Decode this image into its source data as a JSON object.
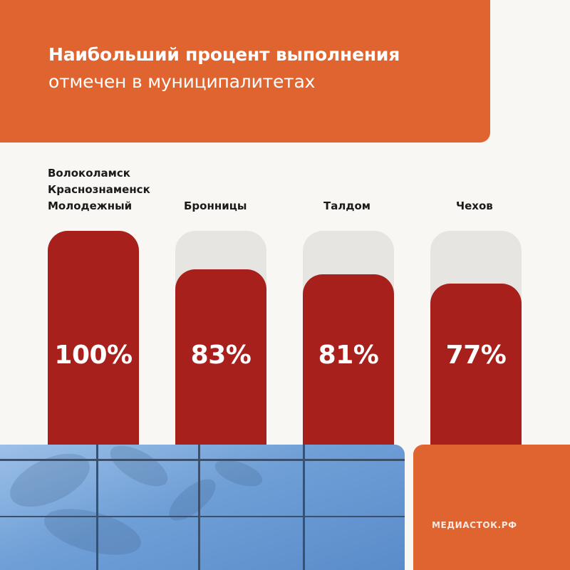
{
  "header": {
    "title": "Наибольший процент выполнения",
    "subtitle": "отмечен в муниципалитетах"
  },
  "chart_data": {
    "type": "bar",
    "categories": [
      "Волоколамск\nКраснознаменск\nМолодежный",
      "Бронницы",
      "Талдом",
      "Чехов"
    ],
    "values": [
      100,
      83,
      81,
      77
    ],
    "value_labels": [
      "100%",
      "83%",
      "81%",
      "77%"
    ],
    "ylim": [
      0,
      100
    ],
    "grid": false,
    "bar_color": "#a8201c",
    "track_color": "#e7e5e1"
  },
  "footer": {
    "brand": "МЕДИАСТОК.РФ"
  },
  "colors": {
    "accent": "#e06430",
    "bar": "#a8201c",
    "background": "#f9f7f3"
  }
}
